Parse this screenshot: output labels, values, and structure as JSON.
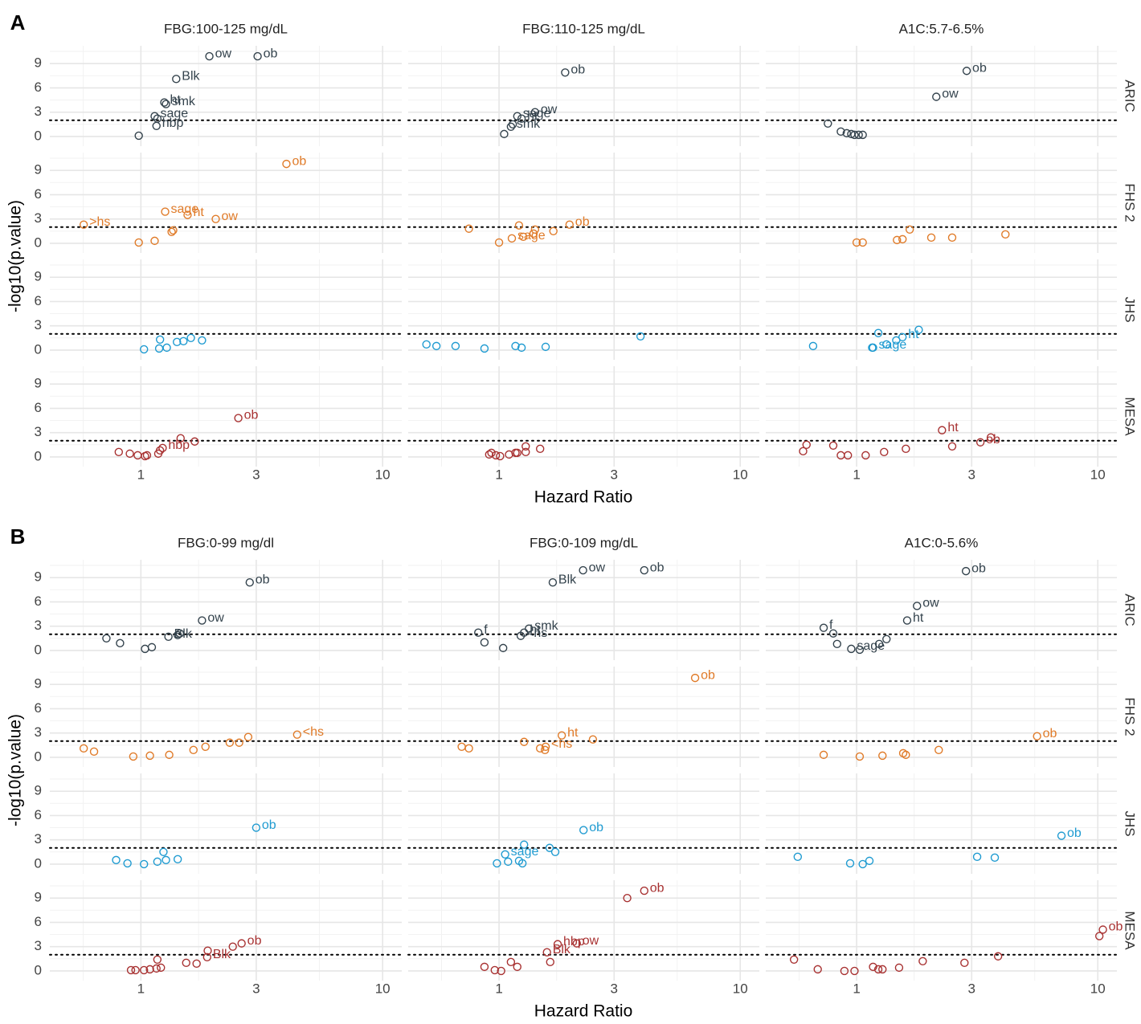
{
  "chart_data": [
    {
      "type": "scatter",
      "panel": "A",
      "x_label": "Hazard Ratio",
      "y_label": "-log10(p.value)",
      "log_x": true,
      "grid": true,
      "xlim": [
        0.42,
        12
      ],
      "xticks": [
        1,
        3,
        10
      ],
      "ylim": [
        -1.2,
        11.2
      ],
      "yticks": [
        0,
        3,
        6,
        9
      ],
      "hline": 2,
      "columns": [
        "FBG:100-125 mg/dL",
        "FBG:110-125 mg/dL",
        "A1C:5.7-6.5%"
      ],
      "rows": [
        {
          "name": "ARIC",
          "color": "#34434d"
        },
        {
          "name": "FHS 2",
          "color": "#e07b29"
        },
        {
          "name": "JHS",
          "color": "#1f9bd1"
        },
        {
          "name": "MESA",
          "color": "#a83232"
        }
      ],
      "facets": [
        [
          {
            "x": [
              0.98,
              1.16,
              1.14,
              1.17,
              1.27,
              1.25,
              1.4,
              1.92,
              3.04
            ],
            "y": [
              0.1,
              1.3,
              2.5,
              2.2,
              4.0,
              4.2,
              7.1,
              9.9,
              9.9
            ],
            "labels": [
              null,
              "hbp",
              "sage",
              null,
              "smk",
              "ht",
              "Blk",
              "ow",
              "ob"
            ]
          },
          {
            "x": [
              1.05,
              1.12,
              1.14,
              1.19,
              1.24,
              1.41,
              1.88
            ],
            "y": [
              0.3,
              1.2,
              1.5,
              2.5,
              2.2,
              3.0,
              7.9
            ],
            "labels": [
              null,
              "smk",
              null,
              "sage",
              "ht",
              "ow",
              "ob"
            ]
          },
          {
            "x": [
              0.76,
              0.86,
              0.91,
              0.95,
              0.98,
              1.02,
              1.06,
              2.14,
              2.86
            ],
            "y": [
              1.6,
              0.6,
              0.4,
              0.3,
              0.2,
              0.2,
              0.2,
              4.9,
              8.1
            ],
            "labels": [
              null,
              null,
              null,
              null,
              null,
              null,
              null,
              "ow",
              "ob"
            ]
          }
        ],
        [
          {
            "x": [
              0.58,
              0.98,
              1.14,
              1.26,
              1.34,
              1.36,
              1.56,
              2.04,
              4.0
            ],
            "y": [
              2.3,
              0.1,
              0.3,
              3.9,
              1.4,
              1.6,
              3.5,
              3.0,
              9.8
            ],
            "labels": [
              ">hs",
              null,
              null,
              "sage",
              null,
              null,
              "ht",
              "ow",
              "ob"
            ]
          },
          {
            "x": [
              0.75,
              1.0,
              1.13,
              1.21,
              1.26,
              1.39,
              1.41,
              1.68,
              1.96
            ],
            "y": [
              1.8,
              0.1,
              0.6,
              2.2,
              0.8,
              1.2,
              1.7,
              1.5,
              2.3
            ],
            "labels": [
              null,
              null,
              "sage",
              null,
              null,
              null,
              null,
              null,
              "ob"
            ]
          },
          {
            "x": [
              1.0,
              1.06,
              1.47,
              1.55,
              1.66,
              2.04,
              2.49,
              4.14
            ],
            "y": [
              0.1,
              0.1,
              0.4,
              0.5,
              1.7,
              0.7,
              0.7,
              1.1
            ],
            "labels": [
              null,
              null,
              null,
              null,
              null,
              null,
              null,
              null
            ]
          }
        ],
        [
          {
            "x": [
              1.03,
              1.19,
              1.2,
              1.28,
              1.41,
              1.5,
              1.61,
              1.79
            ],
            "y": [
              0.1,
              0.2,
              1.3,
              0.3,
              1.0,
              1.1,
              1.5,
              1.2
            ],
            "labels": [
              null,
              null,
              null,
              null,
              null,
              null,
              null,
              null
            ]
          },
          {
            "x": [
              0.5,
              0.55,
              0.66,
              0.87,
              1.17,
              1.24,
              1.56,
              3.86
            ],
            "y": [
              0.7,
              0.5,
              0.5,
              0.2,
              0.5,
              0.3,
              0.4,
              1.7
            ],
            "labels": [
              null,
              null,
              null,
              null,
              null,
              null,
              null,
              null
            ]
          },
          {
            "x": [
              0.66,
              1.16,
              1.17,
              1.23,
              1.33,
              1.46,
              1.55,
              1.81
            ],
            "y": [
              0.5,
              0.3,
              0.3,
              2.1,
              0.7,
              1.2,
              1.6,
              2.5
            ],
            "labels": [
              null,
              null,
              "sage",
              null,
              null,
              null,
              "ht",
              null
            ]
          }
        ],
        [
          {
            "x": [
              0.81,
              0.9,
              0.97,
              1.04,
              1.06,
              1.18,
              1.2,
              1.23,
              1.46,
              1.67,
              2.53
            ],
            "y": [
              0.6,
              0.4,
              0.2,
              0.1,
              0.2,
              0.4,
              0.8,
              1.1,
              2.3,
              1.9,
              4.8
            ],
            "labels": [
              null,
              null,
              null,
              null,
              null,
              null,
              null,
              "hbp",
              null,
              null,
              "ob"
            ]
          },
          {
            "x": [
              0.91,
              0.93,
              0.97,
              1.01,
              1.1,
              1.17,
              1.19,
              1.29,
              1.29,
              1.48
            ],
            "y": [
              0.3,
              0.5,
              0.2,
              0.1,
              0.3,
              0.5,
              0.5,
              0.6,
              1.3,
              1.0
            ],
            "labels": [
              null,
              null,
              null,
              null,
              null,
              null,
              null,
              null,
              null,
              null
            ]
          },
          {
            "x": [
              0.6,
              0.62,
              0.8,
              0.86,
              0.92,
              1.09,
              1.3,
              1.6,
              2.26,
              2.49,
              3.26,
              3.6
            ],
            "y": [
              0.7,
              1.5,
              1.4,
              0.2,
              0.2,
              0.2,
              0.6,
              1.0,
              3.3,
              1.3,
              1.8,
              2.4
            ],
            "labels": [
              null,
              null,
              null,
              null,
              null,
              null,
              null,
              null,
              "ht",
              null,
              "ob",
              null
            ]
          }
        ]
      ]
    },
    {
      "type": "scatter",
      "panel": "B",
      "x_label": "Hazard Ratio",
      "y_label": "-log10(p.value)",
      "log_x": true,
      "grid": true,
      "xlim": [
        0.42,
        12
      ],
      "xticks": [
        1,
        3,
        10
      ],
      "ylim": [
        -1.2,
        11.2
      ],
      "yticks": [
        0,
        3,
        6,
        9
      ],
      "hline": 2,
      "columns": [
        "FBG:0-99 mg/dl",
        "FBG:0-109 mg/dL",
        "A1C:0-5.6%"
      ],
      "rows": [
        {
          "name": "ARIC",
          "color": "#34434d"
        },
        {
          "name": "FHS 2",
          "color": "#e07b29"
        },
        {
          "name": "JHS",
          "color": "#1f9bd1"
        },
        {
          "name": "MESA",
          "color": "#a83232"
        }
      ],
      "facets": [
        [
          {
            "x": [
              0.72,
              0.82,
              1.04,
              1.11,
              1.3,
              1.42,
              1.45,
              1.79,
              2.82
            ],
            "y": [
              1.5,
              0.9,
              0.2,
              0.4,
              1.7,
              1.9,
              2.1,
              3.7,
              8.4
            ],
            "labels": [
              null,
              null,
              null,
              null,
              "Blk",
              null,
              null,
              "ow",
              "ob"
            ]
          },
          {
            "x": [
              0.82,
              0.87,
              1.04,
              1.23,
              1.27,
              1.33,
              1.67,
              2.23,
              4.0
            ],
            "y": [
              2.2,
              1.0,
              0.3,
              1.8,
              2.2,
              2.7,
              8.4,
              9.9,
              9.9
            ],
            "labels": [
              "f",
              null,
              null,
              "<hs",
              "ht",
              "smk",
              "Blk",
              "ow",
              "ob"
            ]
          },
          {
            "x": [
              0.73,
              0.8,
              0.83,
              0.95,
              1.03,
              1.24,
              1.33,
              1.62,
              1.78,
              2.84
            ],
            "y": [
              2.8,
              2.1,
              0.8,
              0.2,
              0.1,
              0.8,
              1.4,
              3.7,
              5.5,
              9.8
            ],
            "labels": [
              "f",
              null,
              null,
              "sage",
              null,
              null,
              null,
              "ht",
              "ow",
              "ob"
            ]
          }
        ],
        [
          {
            "x": [
              0.58,
              0.64,
              0.93,
              1.09,
              1.31,
              1.65,
              1.85,
              2.33,
              2.55,
              2.78,
              4.43
            ],
            "y": [
              1.1,
              0.7,
              0.1,
              0.2,
              0.3,
              0.9,
              1.3,
              1.8,
              1.8,
              2.5,
              2.8
            ],
            "labels": [
              null,
              null,
              null,
              null,
              null,
              null,
              null,
              null,
              null,
              null,
              "<hs"
            ]
          },
          {
            "x": [
              0.7,
              0.75,
              1.27,
              1.48,
              1.55,
              1.56,
              1.82,
              2.45,
              6.5
            ],
            "y": [
              1.3,
              1.1,
              1.9,
              1.1,
              0.9,
              1.3,
              2.7,
              2.2,
              9.8
            ],
            "labels": [
              null,
              null,
              null,
              null,
              null,
              "<hs",
              "ht",
              null,
              "ob"
            ]
          },
          {
            "x": [
              0.73,
              1.03,
              1.28,
              1.56,
              1.6,
              2.19,
              5.6
            ],
            "y": [
              0.3,
              0.1,
              0.2,
              0.5,
              0.3,
              0.9,
              2.6
            ],
            "labels": [
              null,
              null,
              null,
              null,
              null,
              null,
              "ob"
            ]
          }
        ],
        [
          {
            "x": [
              0.79,
              0.88,
              1.03,
              1.17,
              1.24,
              1.27,
              1.42,
              3.0
            ],
            "y": [
              0.5,
              0.1,
              0.0,
              0.3,
              1.5,
              0.5,
              0.6,
              4.5
            ],
            "labels": [
              null,
              null,
              null,
              null,
              null,
              null,
              null,
              "ob"
            ]
          },
          {
            "x": [
              0.98,
              1.09,
              1.06,
              1.21,
              1.25,
              1.27,
              1.62,
              1.71,
              2.24
            ],
            "y": [
              0.1,
              0.3,
              1.2,
              0.4,
              0.1,
              2.4,
              2.0,
              1.5,
              4.2
            ],
            "labels": [
              null,
              null,
              "sage",
              null,
              null,
              null,
              null,
              null,
              "ob"
            ]
          },
          {
            "x": [
              0.57,
              0.94,
              1.06,
              1.13,
              3.16,
              3.74,
              7.07
            ],
            "y": [
              0.9,
              0.1,
              0.0,
              0.4,
              0.9,
              0.8,
              3.5
            ],
            "labels": [
              null,
              null,
              null,
              null,
              null,
              null,
              "ob"
            ]
          }
        ],
        [
          {
            "x": [
              0.91,
              0.95,
              1.03,
              1.09,
              1.16,
              1.17,
              1.21,
              1.54,
              1.7,
              1.88,
              1.89,
              2.4,
              2.61
            ],
            "y": [
              0.1,
              0.1,
              0.1,
              0.2,
              0.3,
              1.4,
              0.4,
              1.0,
              0.9,
              1.7,
              2.5,
              3.0,
              3.4
            ],
            "labels": [
              null,
              null,
              null,
              null,
              null,
              null,
              null,
              null,
              null,
              "Blk",
              null,
              null,
              "ob"
            ]
          },
          {
            "x": [
              0.87,
              0.96,
              1.02,
              1.12,
              1.19,
              1.58,
              1.63,
              1.75,
              2.1,
              3.4,
              4.0
            ],
            "y": [
              0.5,
              0.1,
              0.0,
              1.1,
              0.5,
              2.3,
              1.1,
              3.3,
              3.4,
              9.0,
              9.9
            ],
            "labels": [
              null,
              null,
              null,
              null,
              null,
              "Blk",
              null,
              "hbp",
              "ow",
              null,
              "ob"
            ]
          },
          {
            "x": [
              0.55,
              0.69,
              0.89,
              0.98,
              1.17,
              1.23,
              1.28,
              1.5,
              1.88,
              2.8,
              3.86,
              10.15,
              10.5
            ],
            "y": [
              1.4,
              0.2,
              0.0,
              0.0,
              0.5,
              0.2,
              0.2,
              0.4,
              1.2,
              1.0,
              1.8,
              4.3,
              5.1
            ],
            "labels": [
              null,
              null,
              null,
              null,
              null,
              null,
              null,
              null,
              null,
              null,
              null,
              null,
              "ob"
            ]
          }
        ]
      ]
    }
  ]
}
